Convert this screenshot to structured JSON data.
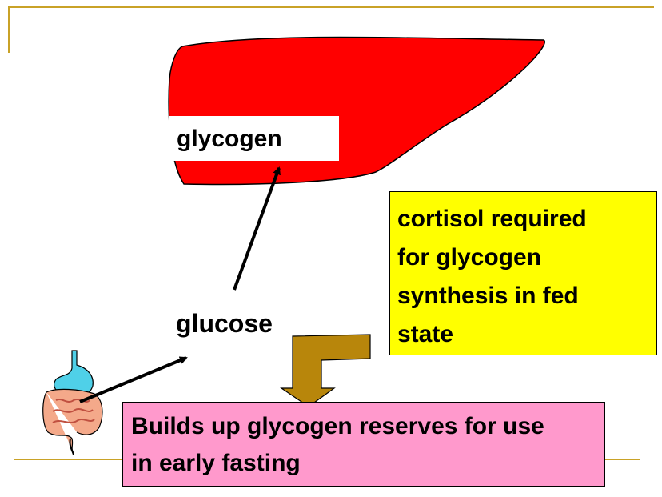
{
  "labels": {
    "glycogen": "glycogen",
    "glucose": "glucose"
  },
  "cortisol_note": {
    "lines": [
      "cortisol required",
      "for glycogen",
      "synthesis in fed",
      "state"
    ]
  },
  "result_note": {
    "lines": [
      "Builds up glycogen reserves for use",
      "in early fasting"
    ]
  },
  "colors": {
    "liver": "#ff0000",
    "cortisol_box": "#ffff00",
    "result_box": "#ff99cc",
    "bent_arrow": "#b8860b",
    "rules": "#c9a227",
    "intestine": "#f4a98a",
    "stomach": "#4fd0e8"
  },
  "icons": {
    "organ": "liver-icon",
    "digestive": "digestive-system-icon"
  }
}
